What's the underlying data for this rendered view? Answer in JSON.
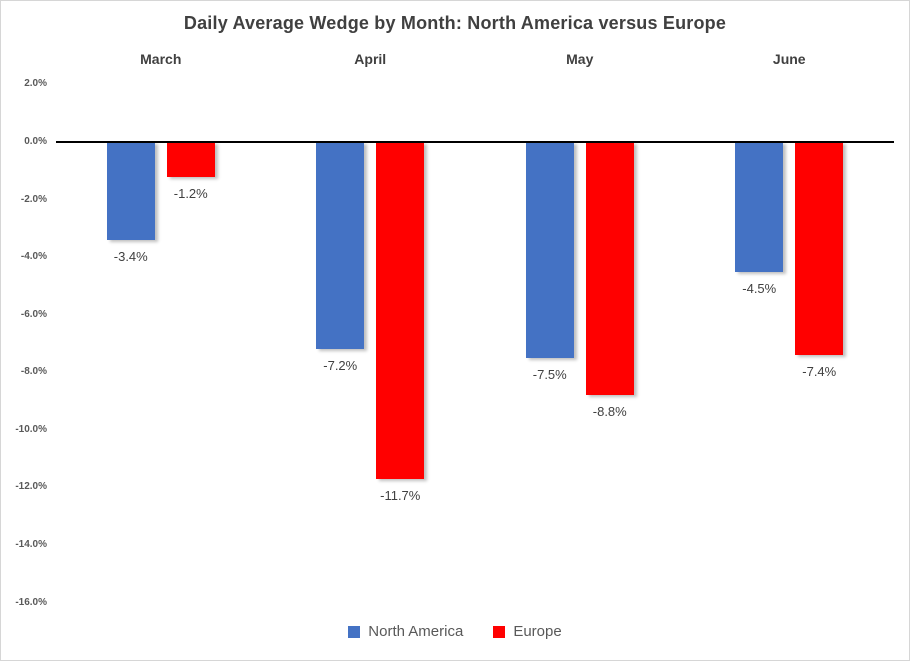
{
  "window": {
    "background_color": "#ffffff",
    "border_color": "#d6d6d6"
  },
  "chart_data": {
    "type": "bar",
    "title": "Daily Average Wedge by Month: North America versus Europe",
    "categories": [
      "March",
      "April",
      "May",
      "June"
    ],
    "series": [
      {
        "name": "North America",
        "color": "#4472C4",
        "values": [
          -3.4,
          -7.2,
          -7.5,
          -4.5
        ],
        "labels": [
          "-3.4%",
          "-7.2%",
          "-7.5%",
          "-4.5%"
        ]
      },
      {
        "name": "Europe",
        "color": "#FF0000",
        "values": [
          -1.2,
          -11.7,
          -8.8,
          -7.4
        ],
        "labels": [
          "-1.2%",
          "-11.7%",
          "-8.8%",
          "-7.4%"
        ]
      }
    ],
    "y_axis": {
      "unit": "%",
      "min": -16,
      "max": 2,
      "tick_step": 2,
      "ticks": [
        {
          "value": 2,
          "label": "2.0%"
        },
        {
          "value": 0,
          "label": "0.0%"
        },
        {
          "value": -2,
          "label": "-2.0%"
        },
        {
          "value": -4,
          "label": "-4.0%"
        },
        {
          "value": -6,
          "label": "-6.0%"
        },
        {
          "value": -8,
          "label": "-8.0%"
        },
        {
          "value": -10,
          "label": "-10.0%"
        },
        {
          "value": -12,
          "label": "-12.0%"
        },
        {
          "value": -14,
          "label": "-14.0%"
        },
        {
          "value": -16,
          "label": "-16.0%"
        }
      ]
    },
    "zero_line_color": "#000000",
    "grid": false,
    "legend_position": "bottom",
    "legend": [
      {
        "name": "North America",
        "color": "#4472C4"
      },
      {
        "name": "Europe",
        "color": "#FF0000"
      }
    ],
    "text_colors": {
      "title": "#404040",
      "category_labels": "#404040",
      "data_labels": "#404040",
      "axis_ticks": "#595959",
      "legend": "#595959"
    }
  }
}
